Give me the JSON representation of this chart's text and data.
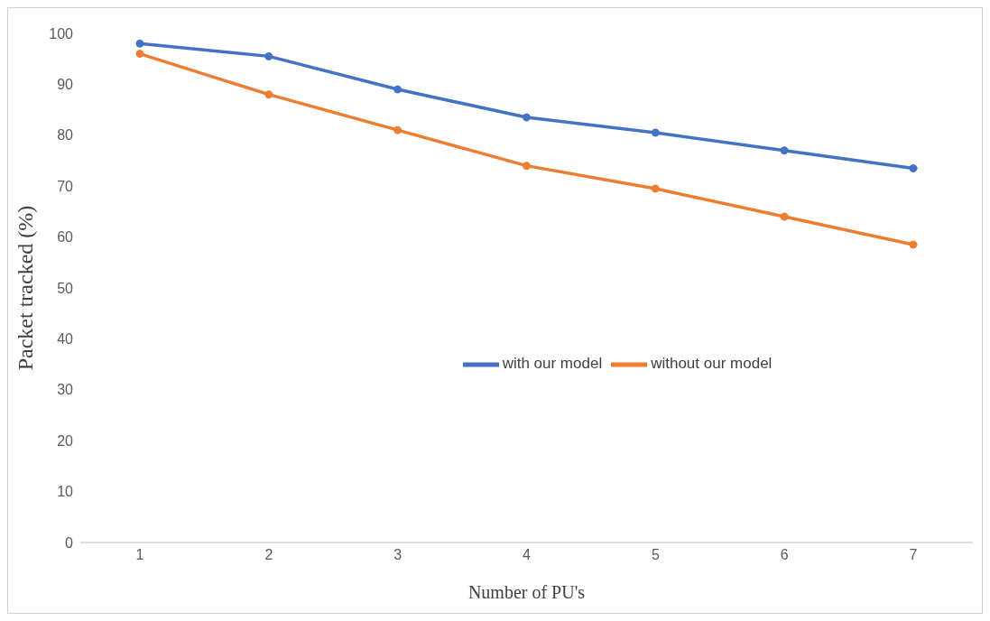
{
  "chart_data": {
    "type": "line",
    "xlabel": "Number of PU's",
    "ylabel": "Packet tracked (%)",
    "categories": [
      "1",
      "2",
      "3",
      "4",
      "5",
      "6",
      "7"
    ],
    "series": [
      {
        "name": "with our model",
        "color": "#4472c4",
        "values": [
          98,
          95.5,
          89,
          83.5,
          80.5,
          77,
          73.5
        ]
      },
      {
        "name": "without our model",
        "color": "#ed7d31",
        "values": [
          96,
          88,
          81,
          74,
          69.5,
          64,
          58.5
        ]
      }
    ],
    "ylim": [
      0,
      100
    ],
    "yticks": [
      0,
      10,
      20,
      30,
      40,
      50,
      60,
      70,
      80,
      90,
      100
    ],
    "grid": false,
    "legend": "center",
    "marker": "circle",
    "line_style": "solid"
  }
}
